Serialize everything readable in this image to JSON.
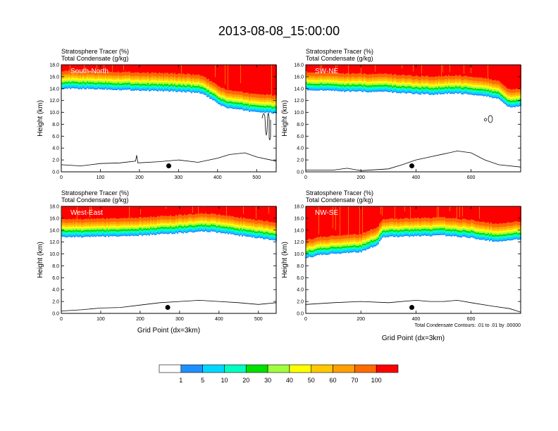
{
  "title": "2013-08-08_15:00:00",
  "colors": {
    "levels": [
      "#ffffff",
      "#1e90ff",
      "#00d8ff",
      "#00ffc0",
      "#00e000",
      "#a0ff40",
      "#ffff00",
      "#ffc800",
      "#ffa000",
      "#ff6a00",
      "#ff0000"
    ]
  },
  "colorbar": {
    "labels": [
      "1",
      "5",
      "10",
      "20",
      "30",
      "40",
      "50",
      "60",
      "70",
      "100"
    ]
  },
  "contour_note": "Total Condensate Contours: .01 to .01 by .00000",
  "chart_data": [
    {
      "type": "heatmap",
      "label": "South-North",
      "subtitle1": "Stratosphere Tracer   (%)",
      "subtitle2": "Total Condensate   (g/kg)",
      "ylabel": "Height (km)",
      "xlabel": "",
      "xlim": [
        0,
        550
      ],
      "ylim": [
        0,
        18
      ],
      "xticks": [
        "0",
        "100",
        "200",
        "300",
        "400",
        "500"
      ],
      "yticks": [
        "0.0",
        "2.0",
        "4.0",
        "6.0",
        "8.0",
        "10.0",
        "12.0",
        "14.0",
        "16.0",
        "18.0"
      ],
      "tracer_base_km": [
        [
          0,
          14.0
        ],
        [
          100,
          13.9
        ],
        [
          200,
          13.7
        ],
        [
          300,
          13.5
        ],
        [
          360,
          13.2
        ],
        [
          400,
          11.5
        ],
        [
          420,
          10.8
        ],
        [
          480,
          10.2
        ],
        [
          550,
          9.8
        ]
      ],
      "terrain_km": [
        [
          0,
          1.2
        ],
        [
          50,
          1.0
        ],
        [
          100,
          1.4
        ],
        [
          150,
          1.5
        ],
        [
          190,
          1.8
        ],
        [
          193,
          2.8
        ],
        [
          196,
          1.5
        ],
        [
          250,
          1.7
        ],
        [
          300,
          2.0
        ],
        [
          350,
          1.6
        ],
        [
          400,
          2.3
        ],
        [
          430,
          2.9
        ],
        [
          470,
          3.2
        ],
        [
          500,
          2.5
        ],
        [
          550,
          1.8
        ]
      ],
      "marker": [
        275,
        1.0
      ]
    },
    {
      "type": "heatmap",
      "label": "SW-NE",
      "subtitle1": "Stratosphere Tracer   (%)",
      "subtitle2": "Total Condensate   (g/kg)",
      "ylabel": "Height (km)",
      "xlabel": "",
      "xlim": [
        0,
        780
      ],
      "ylim": [
        0,
        18
      ],
      "xticks": [
        "0",
        "200",
        "400",
        "600"
      ],
      "yticks": [
        "0.0",
        "2.0",
        "4.0",
        "6.0",
        "8.0",
        "10.0",
        "12.0",
        "14.0",
        "16.0",
        "18.0"
      ],
      "tracer_base_km": [
        [
          0,
          13.8
        ],
        [
          150,
          13.5
        ],
        [
          300,
          13.4
        ],
        [
          450,
          13.0
        ],
        [
          550,
          13.2
        ],
        [
          650,
          12.8
        ],
        [
          700,
          12.2
        ],
        [
          740,
          10.8
        ],
        [
          780,
          11.0
        ]
      ],
      "terrain_km": [
        [
          0,
          0.3
        ],
        [
          100,
          0.3
        ],
        [
          150,
          0.6
        ],
        [
          200,
          0.2
        ],
        [
          300,
          0.5
        ],
        [
          350,
          1.2
        ],
        [
          400,
          2.0
        ],
        [
          450,
          2.5
        ],
        [
          500,
          3.0
        ],
        [
          550,
          3.5
        ],
        [
          600,
          3.2
        ],
        [
          650,
          2.0
        ],
        [
          700,
          1.2
        ],
        [
          780,
          0.8
        ]
      ],
      "marker": [
        385,
        1.0
      ]
    },
    {
      "type": "heatmap",
      "label": "West-East",
      "subtitle1": "Stratosphere Tracer   (%)",
      "subtitle2": "Total Condensate   (g/kg)",
      "ylabel": "Height (km)",
      "xlabel": "Grid Point (dx=3km)",
      "xlim": [
        0,
        545
      ],
      "ylim": [
        0,
        18
      ],
      "xticks": [
        "0",
        "100",
        "200",
        "300",
        "400",
        "500"
      ],
      "yticks": [
        "0.0",
        "2.0",
        "4.0",
        "6.0",
        "8.0",
        "10.0",
        "12.0",
        "14.0",
        "16.0",
        "18.0"
      ],
      "tracer_base_km": [
        [
          0,
          12.8
        ],
        [
          100,
          12.9
        ],
        [
          200,
          13.1
        ],
        [
          300,
          13.5
        ],
        [
          360,
          13.8
        ],
        [
          400,
          13.6
        ],
        [
          450,
          13.1
        ],
        [
          500,
          12.7
        ],
        [
          545,
          12.2
        ]
      ],
      "terrain_km": [
        [
          0,
          0.4
        ],
        [
          50,
          0.6
        ],
        [
          100,
          0.9
        ],
        [
          150,
          1.0
        ],
        [
          200,
          1.4
        ],
        [
          250,
          1.8
        ],
        [
          300,
          2.0
        ],
        [
          350,
          2.2
        ],
        [
          400,
          2.0
        ],
        [
          450,
          1.8
        ],
        [
          500,
          1.5
        ],
        [
          545,
          1.8
        ]
      ],
      "marker": [
        270,
        1.0
      ]
    },
    {
      "type": "heatmap",
      "label": "NW-SE",
      "subtitle1": "Stratosphere Tracer   (%)",
      "subtitle2": "Total Condensate   (g/kg)",
      "ylabel": "Height (km)",
      "xlabel": "Grid Point (dx=3km)",
      "xlim": [
        0,
        780
      ],
      "ylim": [
        0,
        18
      ],
      "xticks": [
        "0",
        "200",
        "400",
        "600"
      ],
      "yticks": [
        "0.0",
        "2.0",
        "4.0",
        "6.0",
        "8.0",
        "10.0",
        "12.0",
        "14.0",
        "16.0",
        "18.0"
      ],
      "tracer_base_km": [
        [
          0,
          9.3
        ],
        [
          50,
          9.8
        ],
        [
          120,
          10.1
        ],
        [
          200,
          10.3
        ],
        [
          260,
          11.5
        ],
        [
          280,
          12.8
        ],
        [
          400,
          13.0
        ],
        [
          500,
          13.1
        ],
        [
          600,
          12.7
        ],
        [
          700,
          12.0
        ],
        [
          780,
          12.5
        ]
      ],
      "terrain_km": [
        [
          0,
          1.5
        ],
        [
          100,
          1.8
        ],
        [
          200,
          2.0
        ],
        [
          300,
          1.8
        ],
        [
          400,
          2.2
        ],
        [
          450,
          2.0
        ],
        [
          500,
          2.0
        ],
        [
          550,
          2.2
        ],
        [
          600,
          1.8
        ],
        [
          680,
          1.2
        ],
        [
          740,
          0.8
        ],
        [
          780,
          0.2
        ]
      ],
      "marker": [
        385,
        1.0
      ]
    }
  ]
}
